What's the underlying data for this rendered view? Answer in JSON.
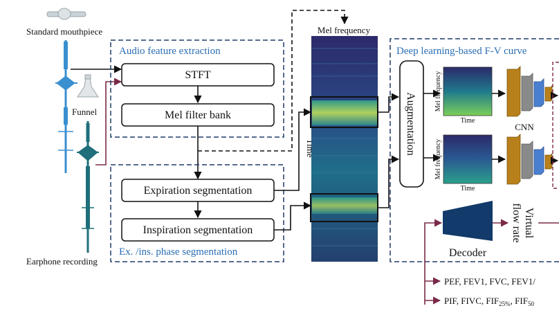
{
  "inputs": {
    "mouthpiece_label": "Standard mouthpiece",
    "funnel_label": "Funnel",
    "earphone_label": "Earphone recording"
  },
  "audio_feature": {
    "title": "Audio feature extraction",
    "stft": "STFT",
    "mel_filter": "Mel filter bank"
  },
  "segmentation": {
    "title": "Ex. /ins. phase segmentation",
    "expiration": "Expiration segmentation",
    "inspiration": "Inspiration segmentation"
  },
  "spectrogram": {
    "top_label": "Mel frequency",
    "side_label": "Time"
  },
  "deep_learning": {
    "title": "Deep learning-based F-V curve",
    "augmentation": "Augmentation",
    "mini_ylabel": "Mel frequency",
    "mini_xlabel": "Time",
    "cnn_label": "CNN",
    "decoder_label": "Decoder",
    "virtual_flow_line1": "Virtual",
    "virtual_flow_line2": "flow rate"
  },
  "outputs": {
    "line1": "PEF, FEV1, FVC, FEV1/",
    "line2_prefix": "PIF, FIVC, FIF",
    "line2_sub1": "25%",
    "line2_mid": ", FIF",
    "line2_sub2": "50"
  },
  "colors": {
    "dash_border": "#1f3a68",
    "title_blue": "#2a6db3",
    "waveform_blue": "#3a8fcf",
    "waveform_teal": "#1f6f7a",
    "maroon": "#7a2a48",
    "cnn_orange": "#b8801a",
    "cnn_gray": "#8a8a8a",
    "cnn_blue": "#4a7fd0",
    "decoder_navy": "#123a6a"
  }
}
